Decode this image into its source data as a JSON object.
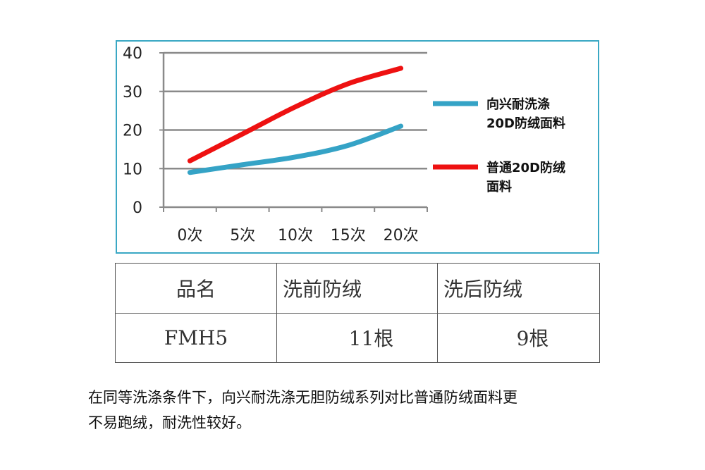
{
  "chart_data": {
    "type": "line",
    "categories": [
      "0次",
      "5次",
      "10次",
      "15次",
      "20次"
    ],
    "ylim": [
      0,
      40
    ],
    "yticks": [
      0,
      10,
      20,
      30,
      40
    ],
    "grid": true,
    "legend_position": "right",
    "series": [
      {
        "name": "向兴耐洗涤\n20D防绒面料",
        "name_lines": [
          "向兴耐洗涤",
          "20D防绒面料"
        ],
        "color": "#35a3c6",
        "values": [
          9,
          11,
          13,
          16,
          21
        ]
      },
      {
        "name": "普通20D防绒\n面料",
        "name_lines": [
          "普通20D防绒",
          "面料"
        ],
        "color": "#ee1111",
        "values": [
          12,
          19,
          26,
          32,
          36
        ]
      }
    ]
  },
  "table": {
    "headers": [
      "品名",
      "洗前防绒",
      "洗后防绒"
    ],
    "rows": [
      [
        "FMH5",
        "11根",
        "9根"
      ]
    ]
  },
  "caption": {
    "lines": [
      "在同等洗涤条件下，向兴耐洗涤无胆防绒系列对比普通防绒面料更",
      "不易跑绒，耐洗性较好。"
    ]
  }
}
